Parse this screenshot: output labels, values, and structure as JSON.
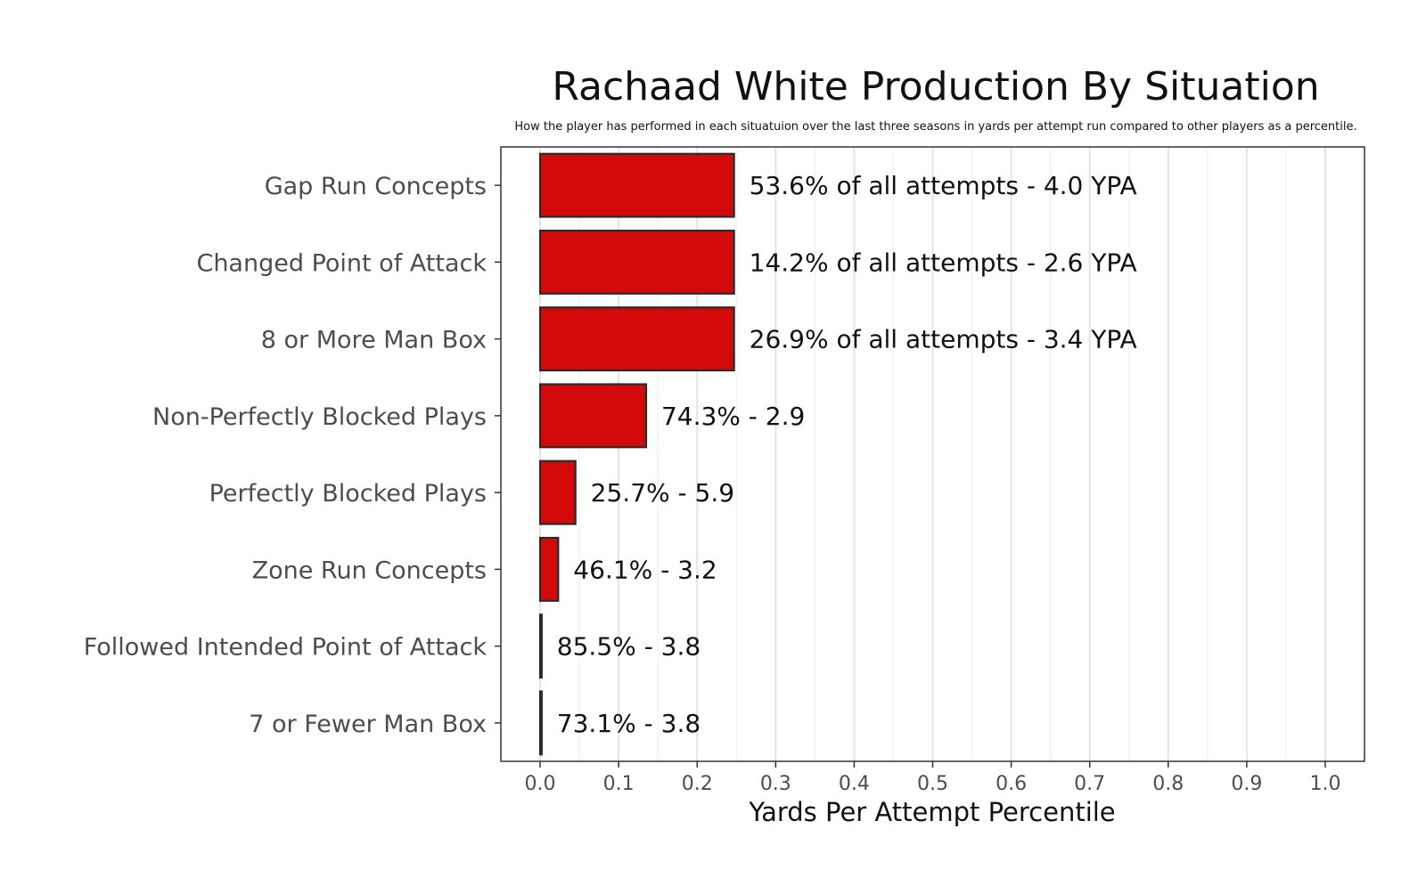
{
  "chart_data": {
    "type": "bar",
    "orientation": "horizontal",
    "title": "Rachaad White Production By Situation",
    "subtitle": "How the player has performed in each situatuion over the last three seasons in yards per attempt run compared to other players as a percentile.",
    "xlabel": "Yards Per Attempt Percentile",
    "ylabel": "",
    "xlim": [
      -0.05,
      1.05
    ],
    "xticks": [
      0.0,
      0.1,
      0.2,
      0.3,
      0.4,
      0.5,
      0.6,
      0.7,
      0.8,
      0.9,
      1.0
    ],
    "xtick_labels": [
      "0.0",
      "0.1",
      "0.2",
      "0.3",
      "0.4",
      "0.5",
      "0.6",
      "0.7",
      "0.8",
      "0.9",
      "1.0"
    ],
    "grid": "vertical",
    "bar_color": "#d40a0a",
    "bar_edge_color": "#2a2a2a",
    "categories": [
      "Gap Run Concepts",
      "Changed Point of Attack",
      "8 or More Man Box",
      "Non-Perfectly Blocked Plays",
      "Perfectly Blocked Plays",
      "Zone Run Concepts",
      "Followed Intended Point of Attack",
      "7 or Fewer Man Box"
    ],
    "values": [
      0.247,
      0.247,
      0.247,
      0.135,
      0.045,
      0.023,
      0.002,
      0.002
    ],
    "data_labels": [
      "53.6% of all attempts - 4.0 YPA",
      "14.2% of all attempts - 2.6 YPA",
      "26.9% of all attempts - 3.4 YPA",
      "74.3% - 2.9",
      "25.7% - 5.9",
      "46.1% - 3.2",
      "85.5% - 3.8",
      "73.1% - 3.8"
    ]
  }
}
